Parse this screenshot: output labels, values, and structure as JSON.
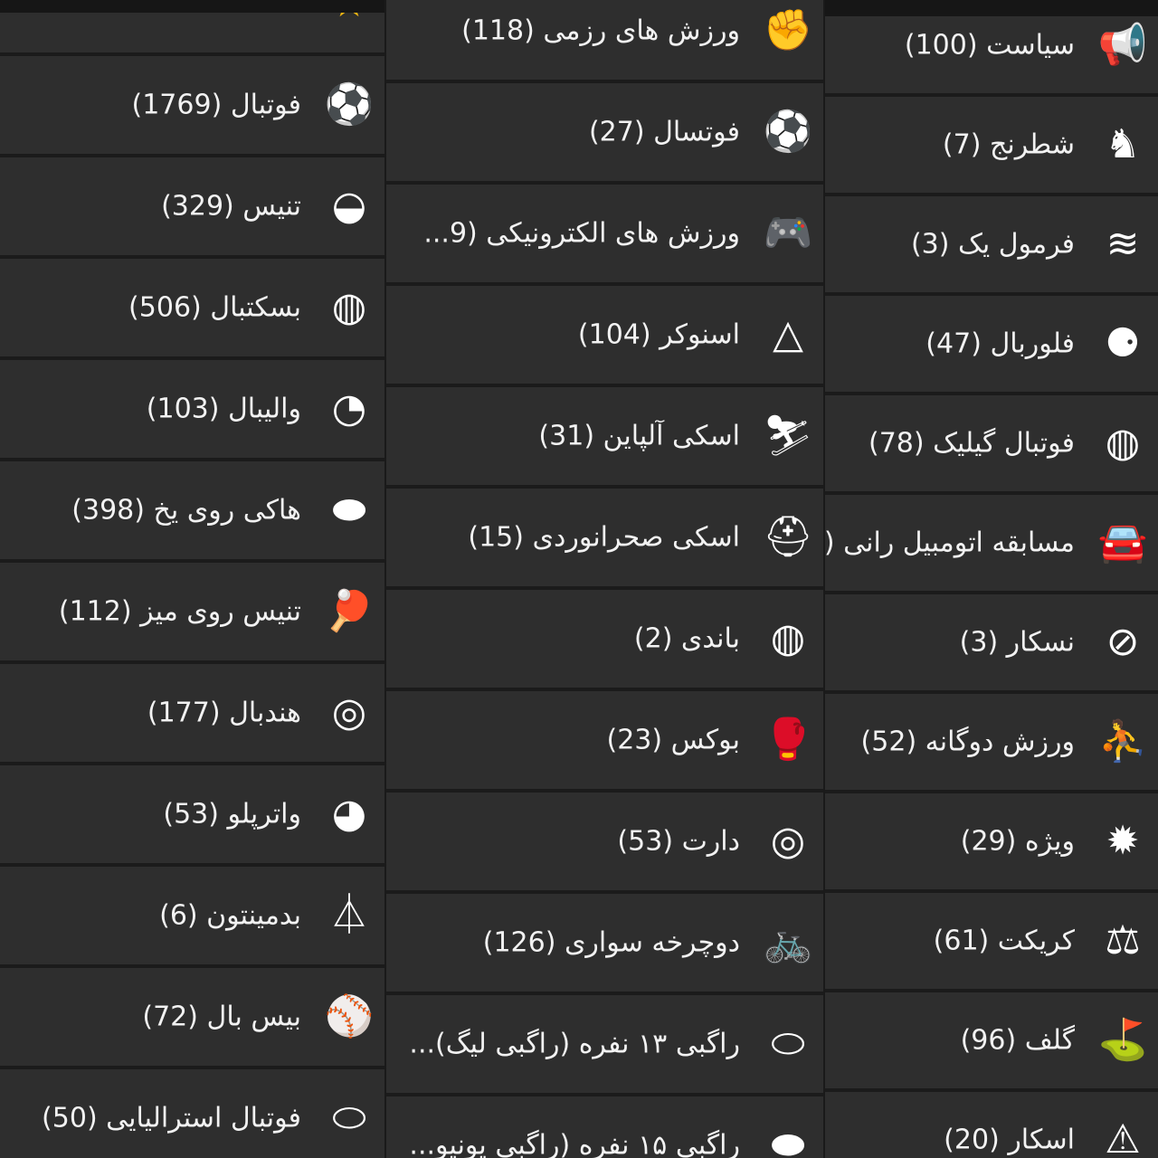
{
  "columns": [
    {
      "items": [
        {
          "label": "",
          "icon": "star-icon",
          "glyph": "★"
        },
        {
          "label": "فوتبال (1769)",
          "icon": "soccer-ball-icon",
          "glyph": "⚽"
        },
        {
          "label": "تنیس (329)",
          "icon": "tennis-ball-icon",
          "glyph": "◒"
        },
        {
          "label": "بسکتبال (506)",
          "icon": "basketball-icon",
          "glyph": "◍"
        },
        {
          "label": "والیبال (103)",
          "icon": "volleyball-icon",
          "glyph": "◔"
        },
        {
          "label": "هاکی روی یخ (398)",
          "icon": "hockey-puck-icon",
          "glyph": "⬬"
        },
        {
          "label": "تنیس روی میز (112)",
          "icon": "ping-pong-paddle-icon",
          "glyph": "🏓"
        },
        {
          "label": "هندبال (177)",
          "icon": "handball-icon",
          "glyph": "◎"
        },
        {
          "label": "واترپلو (53)",
          "icon": "water-polo-icon",
          "glyph": "◕"
        },
        {
          "label": "بدمینتون (6)",
          "icon": "shuttlecock-icon",
          "glyph": "⏃"
        },
        {
          "label": "بیس بال (72)",
          "icon": "baseball-icon",
          "glyph": "⚾"
        },
        {
          "label": "فوتبال استرالیایی (50)",
          "icon": "australian-football-icon",
          "glyph": "⬭"
        }
      ]
    },
    {
      "items": [
        {
          "label": "ورزش های رزمی (118)",
          "icon": "martial-arts-glove-icon",
          "glyph": "✊"
        },
        {
          "label": "فوتسال (27)",
          "icon": "futsal-ball-icon",
          "glyph": "⚽"
        },
        {
          "label": "ورزش های الکترونیکی (9...",
          "icon": "gamepad-icon",
          "glyph": "🎮"
        },
        {
          "label": "اسنوکر (104)",
          "icon": "snooker-triangle-icon",
          "glyph": "△"
        },
        {
          "label": "اسکی آلپاین (31)",
          "icon": "skier-icon",
          "glyph": "⛷"
        },
        {
          "label": "اسکی صحرانوردی (15)",
          "icon": "cross-country-ski-icon",
          "glyph": "⛑"
        },
        {
          "label": "باندی (2)",
          "icon": "bandy-ball-icon",
          "glyph": "◍"
        },
        {
          "label": "بوکس (23)",
          "icon": "boxing-glove-icon",
          "glyph": "🥊"
        },
        {
          "label": "دارت (53)",
          "icon": "dartboard-icon",
          "glyph": "◎"
        },
        {
          "label": "دوچرخه سواری (126)",
          "icon": "bicycle-icon",
          "glyph": "🚲"
        },
        {
          "label": "راگبی ۱۳ نفره (راگبی لیگ)...",
          "icon": "rugby-league-ball-icon",
          "glyph": "⬭"
        },
        {
          "label": "راگبی ۱۵ نفره (راگبی یونیو...",
          "icon": "rugby-union-ball-icon",
          "glyph": "⬬"
        }
      ]
    },
    {
      "items": [
        {
          "label": "سیاست (100)",
          "icon": "megaphone-icon",
          "glyph": "📢"
        },
        {
          "label": "شطرنج (7)",
          "icon": "chess-knight-icon",
          "glyph": "♞"
        },
        {
          "label": "فرمول یک (3)",
          "icon": "formula-one-icon",
          "glyph": "≋"
        },
        {
          "label": "فلوربال (47)",
          "icon": "floorball-icon",
          "glyph": "⚈"
        },
        {
          "label": "فوتبال گیلیک (78)",
          "icon": "gaelic-football-icon",
          "glyph": "◍"
        },
        {
          "label": "مسابقه اتومبیل رانی (",
          "icon": "race-car-icon",
          "glyph": "🚘"
        },
        {
          "label": "نسکار (3)",
          "icon": "nascar-icon",
          "glyph": "⊘"
        },
        {
          "label": "ورزش دوگانه (52)",
          "icon": "biathlon-shooter-icon",
          "glyph": "⛹"
        },
        {
          "label": "ویژه (29)",
          "icon": "special-badge-icon",
          "glyph": "✹"
        },
        {
          "label": "کریکت (61)",
          "icon": "cricket-icon",
          "glyph": "⚖"
        },
        {
          "label": "گلف (96)",
          "icon": "golf-ball-tee-icon",
          "glyph": "⛳"
        },
        {
          "label": "اسکار (20)",
          "icon": "oscar-award-icon",
          "glyph": "⚠"
        }
      ]
    }
  ],
  "colors": {
    "row_bg": "#2e2e2e",
    "separator": "#1b1b1b",
    "text": "#f2f2f2",
    "star": "#f1b511"
  }
}
